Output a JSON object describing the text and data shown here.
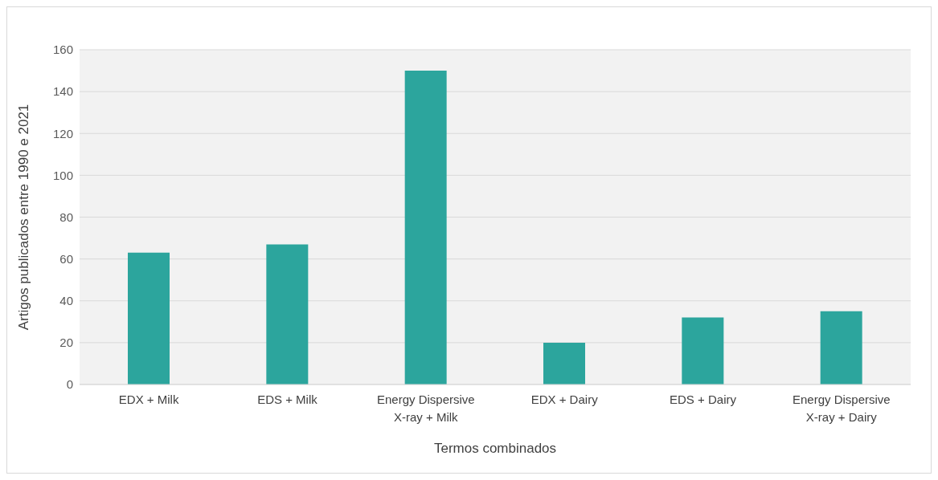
{
  "chart_data": {
    "type": "bar",
    "xlabel": "Termos combinados",
    "ylabel": "Artigos publicados entre 1990 e 2021",
    "categories": [
      "EDX + Milk",
      "EDS + Milk",
      "Energy Dispersive X-ray + Milk",
      "EDX + Dairy",
      "EDS + Dairy",
      "Energy Dispersive X-ray + Dairy"
    ],
    "values": [
      63,
      67,
      150,
      20,
      32,
      35
    ],
    "color": "#2ca59d",
    "ylim": [
      0,
      160
    ],
    "yticks": [
      0,
      20,
      40,
      60,
      80,
      100,
      120,
      140,
      160
    ],
    "grid": "y",
    "legend": false
  }
}
